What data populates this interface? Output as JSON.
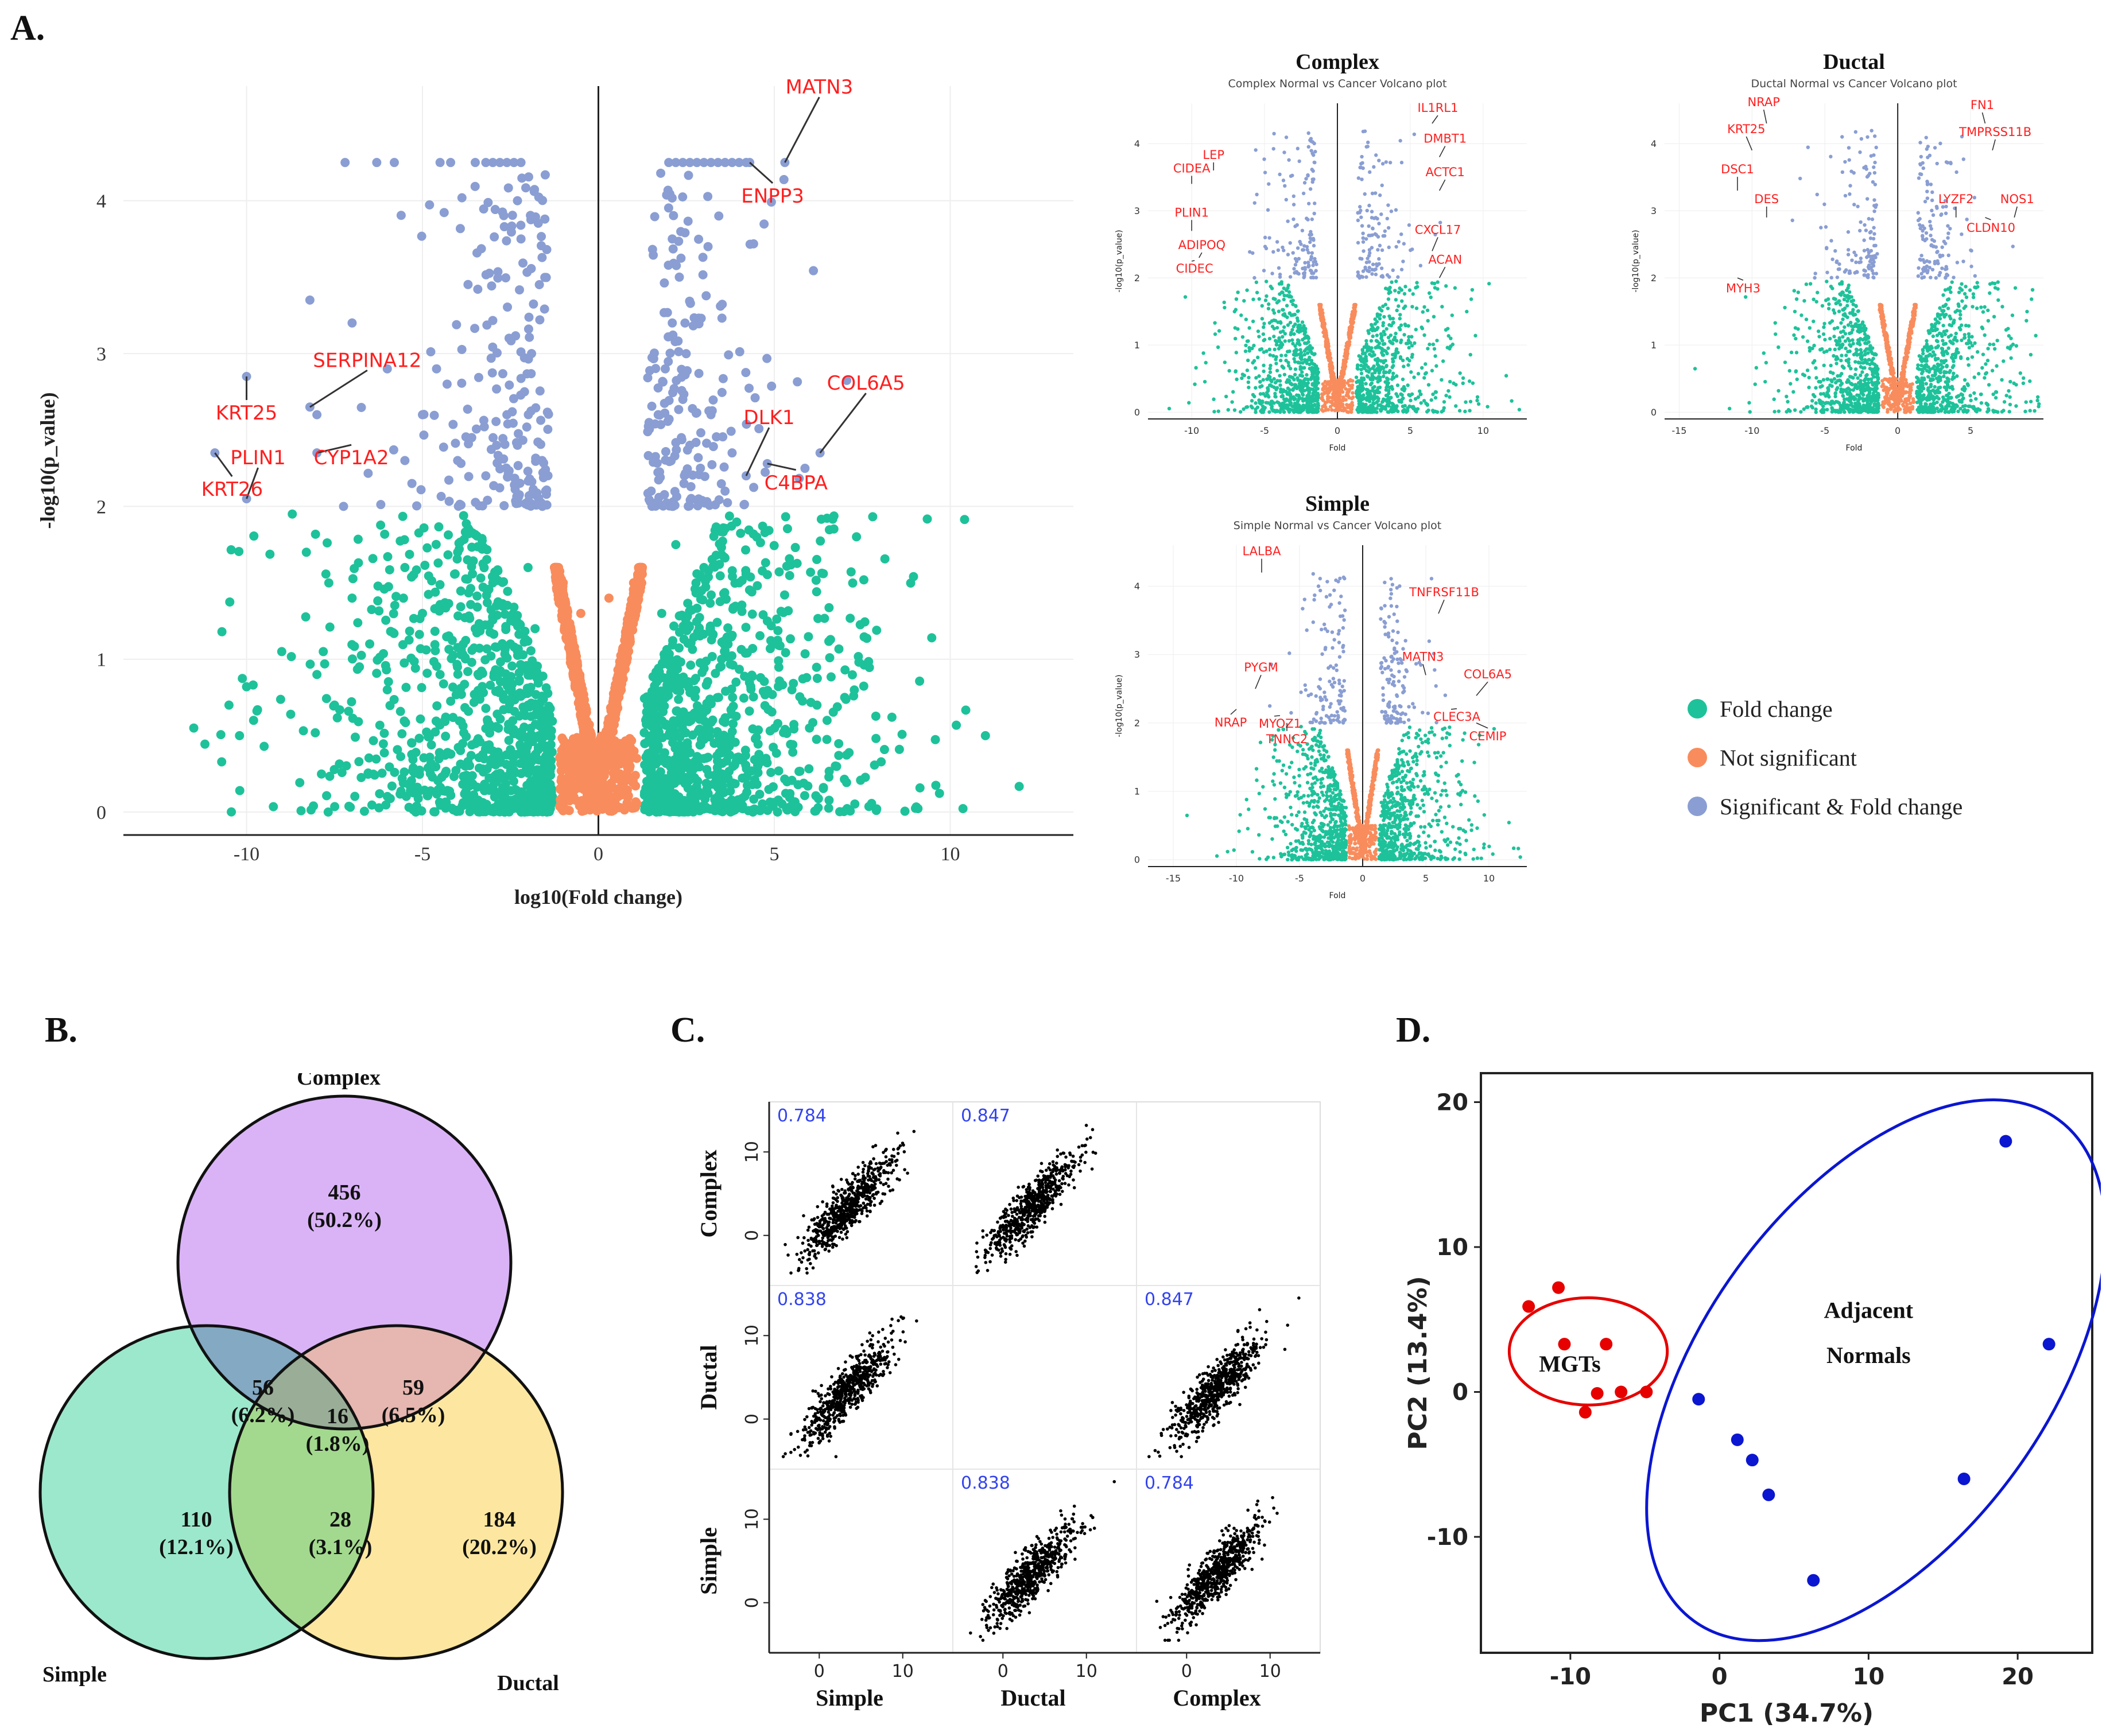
{
  "panels": {
    "a": "A.",
    "b": "B.",
    "c": "C.",
    "d": "D."
  },
  "colors": {
    "fold_change": "#1ec29a",
    "not_significant": "#f98c5c",
    "significant": "#8a9ed3",
    "label_red": "#ff1f1f",
    "venn_complex": "#dab3f7",
    "venn_simple": "#9ce8cc",
    "venn_ductal": "#fde7a0",
    "pca_mgt": "#e60000",
    "pca_normal": "#0b16d1"
  },
  "chart_data": [
    {
      "id": "volcano_main",
      "type": "scatter",
      "title": "",
      "xlabel": "log10(Fold change)",
      "ylabel": "-log10(p_value)",
      "xlim": [
        -13.5,
        13.5
      ],
      "ylim": [
        -0.15,
        4.75
      ],
      "xticks": [
        -10,
        -5,
        0,
        5,
        10
      ],
      "yticks": [
        0,
        1,
        2,
        3,
        4
      ],
      "sig_points": [
        [
          -7.2,
          4.25
        ],
        [
          -6.3,
          4.25
        ],
        [
          -5.8,
          4.25
        ],
        [
          -4.5,
          4.25
        ],
        [
          -4.2,
          4.25
        ],
        [
          -3.5,
          4.25
        ],
        [
          -3.2,
          4.25
        ],
        [
          -3.0,
          4.25
        ],
        [
          -2.8,
          4.25
        ],
        [
          -2.6,
          4.25
        ],
        [
          -2.4,
          4.25
        ],
        [
          -2.2,
          4.25
        ],
        [
          2.0,
          4.25
        ],
        [
          2.2,
          4.25
        ],
        [
          2.4,
          4.25
        ],
        [
          2.6,
          4.25
        ],
        [
          2.8,
          4.25
        ],
        [
          3.0,
          4.25
        ],
        [
          3.2,
          4.25
        ],
        [
          3.4,
          4.25
        ],
        [
          3.6,
          4.25
        ],
        [
          3.8,
          4.25
        ],
        [
          4.0,
          4.25
        ],
        [
          4.2,
          4.25
        ],
        [
          -2.3,
          4.0
        ],
        [
          -2.2,
          3.75
        ],
        [
          2.1,
          3.75
        ],
        [
          2.3,
          3.5
        ],
        [
          -8.2,
          3.35
        ],
        [
          -7.0,
          3.2
        ],
        [
          -6.0,
          2.9
        ],
        [
          -5.5,
          2.3
        ],
        [
          -5.0,
          2.6
        ],
        [
          -5.3,
          2.15
        ],
        [
          -4.6,
          2.9
        ],
        [
          -4.3,
          2.8
        ],
        [
          -4.0,
          2.3
        ],
        [
          -3.6,
          2.45
        ],
        [
          -3.2,
          2.2
        ],
        [
          -2.6,
          2.6
        ],
        [
          -2.3,
          2.4
        ],
        [
          -2.1,
          2.75
        ],
        [
          -1.9,
          3.0
        ],
        [
          -1.6,
          2.3
        ],
        [
          -1.5,
          2.1
        ],
        [
          1.5,
          2.1
        ],
        [
          1.6,
          2.3
        ],
        [
          1.7,
          2.6
        ],
        [
          1.9,
          2.9
        ],
        [
          2.1,
          3.2
        ],
        [
          2.4,
          2.7
        ],
        [
          2.6,
          2.4
        ],
        [
          2.9,
          2.25
        ],
        [
          3.2,
          2.6
        ],
        [
          3.6,
          2.1
        ],
        [
          3.8,
          2.35
        ],
        [
          -8.0,
          2.6
        ],
        [
          -10.0,
          2.85
        ],
        [
          -8.2,
          2.65
        ],
        [
          -8.0,
          2.35
        ],
        [
          -10.9,
          2.35
        ],
        [
          -10.0,
          2.05
        ],
        [
          4.2,
          2.2
        ],
        [
          4.8,
          2.28
        ],
        [
          6.3,
          2.35
        ],
        [
          5.3,
          4.25
        ],
        [
          4.3,
          4.25
        ]
      ],
      "fold_points": [
        [
          -11.5,
          0.55
        ],
        [
          -10.7,
          1.18
        ],
        [
          -10.5,
          0.7
        ],
        [
          -10.2,
          0.5
        ],
        [
          -10.0,
          0.82
        ],
        [
          -9.8,
          0.6
        ],
        [
          -9.5,
          0.43
        ],
        [
          -9.0,
          1.05
        ],
        [
          -8.7,
          1.95
        ],
        [
          -8.3,
          1.7
        ],
        [
          -8.0,
          0.9
        ],
        [
          -7.5,
          0.7
        ],
        [
          -7.0,
          1.4
        ],
        [
          -6.5,
          1.1
        ],
        [
          -6.0,
          0.8
        ],
        [
          -5.5,
          1.6
        ],
        [
          -5.0,
          1.3
        ],
        [
          -4.5,
          0.9
        ],
        [
          -4.0,
          1.7
        ],
        [
          -3.5,
          1.2
        ],
        [
          -3.0,
          1.5
        ],
        [
          -2.5,
          1.1
        ],
        [
          -2.0,
          0.7
        ],
        [
          -1.5,
          0.5
        ],
        [
          1.5,
          0.5
        ],
        [
          2.0,
          0.8
        ],
        [
          2.5,
          1.2
        ],
        [
          3.0,
          1.6
        ],
        [
          3.5,
          1.0
        ],
        [
          4.0,
          1.5
        ],
        [
          4.5,
          1.8
        ],
        [
          5.0,
          1.1
        ],
        [
          5.5,
          0.8
        ],
        [
          6.0,
          0.55
        ],
        [
          6.5,
          0.6
        ],
        [
          7.0,
          0.75
        ],
        [
          11.0,
          0.5
        ],
        [
          -2.0,
          1.6
        ],
        [
          -1.8,
          1.2
        ],
        [
          1.8,
          1.3
        ],
        [
          2.2,
          1.75
        ],
        [
          -3.0,
          0.4
        ],
        [
          3.0,
          0.35
        ]
      ],
      "ns_points": [
        [
          -1.0,
          1.5
        ],
        [
          -0.8,
          1.1
        ],
        [
          -0.6,
          0.8
        ],
        [
          -0.4,
          0.6
        ],
        [
          -0.2,
          0.4
        ],
        [
          0,
          0.3
        ],
        [
          0.2,
          0.4
        ],
        [
          0.4,
          0.6
        ],
        [
          0.6,
          0.9
        ],
        [
          0.8,
          1.2
        ],
        [
          1.0,
          1.5
        ],
        [
          -0.9,
          0.3
        ],
        [
          0.9,
          0.3
        ],
        [
          0.3,
          1.4
        ],
        [
          -0.5,
          1.3
        ]
      ],
      "annotations": [
        {
          "text": "MATN3",
          "x": 5.3,
          "y": 4.25
        },
        {
          "text": "ENPP3",
          "x": 4.3,
          "y": 4.25
        },
        {
          "text": "SERPINA12",
          "x": -8.2,
          "y": 2.65
        },
        {
          "text": "KRT25",
          "x": -10.0,
          "y": 2.85
        },
        {
          "text": "PLIN1",
          "x": -10.0,
          "y": 2.05
        },
        {
          "text": "CYP1A2",
          "x": -8.0,
          "y": 2.35
        },
        {
          "text": "KRT26",
          "x": -10.9,
          "y": 2.35
        },
        {
          "text": "DLK1",
          "x": 4.2,
          "y": 2.2
        },
        {
          "text": "COL6A5",
          "x": 6.3,
          "y": 2.35
        },
        {
          "text": "C4BPA",
          "x": 4.8,
          "y": 2.28
        }
      ]
    },
    {
      "id": "volcano_complex",
      "type": "scatter",
      "title": "Complex",
      "subtitle": "Complex Normal vs Cancer Volcano plot",
      "xlabel": "Fold",
      "ylabel": "-log10(p_value)",
      "xlim": [
        -13,
        13
      ],
      "ylim": [
        -0.1,
        4.6
      ],
      "xticks": [
        -10,
        -5,
        0,
        5,
        10
      ],
      "yticks": [
        0,
        1,
        2,
        3,
        4
      ],
      "annotations": [
        {
          "text": "IL1RL1",
          "x": 6.5,
          "y": 4.3
        },
        {
          "text": "DMBT1",
          "x": 7,
          "y": 3.8
        },
        {
          "text": "ACTC1",
          "x": 7,
          "y": 3.3
        },
        {
          "text": "CIDEA",
          "x": -10,
          "y": 3.4
        },
        {
          "text": "LEP",
          "x": -8.5,
          "y": 3.6
        },
        {
          "text": "CXCL17",
          "x": 6.5,
          "y": 2.4
        },
        {
          "text": "ACAN",
          "x": 7,
          "y": 2.0
        },
        {
          "text": "PLIN1",
          "x": -10,
          "y": 2.7
        },
        {
          "text": "ADIPOQ",
          "x": -9.5,
          "y": 2.3
        },
        {
          "text": "CIDEC",
          "x": -10,
          "y": 2.25
        }
      ]
    },
    {
      "id": "volcano_ductal",
      "type": "scatter",
      "title": "Ductal",
      "subtitle": "Ductal Normal vs Cancer Volcano plot",
      "xlabel": "Fold",
      "ylabel": "-log10(p_value)",
      "xlim": [
        -16,
        10
      ],
      "ylim": [
        -0.1,
        4.6
      ],
      "xticks": [
        -15,
        -10,
        -5,
        0,
        5
      ],
      "yticks": [
        0,
        1,
        2,
        3,
        4
      ],
      "annotations": [
        {
          "text": "NRAP",
          "x": -9,
          "y": 4.3
        },
        {
          "text": "FN1",
          "x": 6,
          "y": 4.3
        },
        {
          "text": "KRT25",
          "x": -10,
          "y": 3.9
        },
        {
          "text": "TMPRSS11B",
          "x": 6.5,
          "y": 3.9
        },
        {
          "text": "DSC1",
          "x": -11,
          "y": 3.3
        },
        {
          "text": "DES",
          "x": -9,
          "y": 2.9
        },
        {
          "text": "LYZF2",
          "x": 4,
          "y": 2.9
        },
        {
          "text": "NOS1",
          "x": 8,
          "y": 2.9
        },
        {
          "text": "CLDN10",
          "x": 6,
          "y": 2.9
        },
        {
          "text": "MYH3",
          "x": -11,
          "y": 2.0
        }
      ]
    },
    {
      "id": "volcano_simple",
      "type": "scatter",
      "title": "Simple",
      "subtitle": "Simple Normal vs Cancer Volcano plot",
      "xlabel": "Fold",
      "ylabel": "-log10(p_value)",
      "xlim": [
        -17,
        13
      ],
      "ylim": [
        -0.1,
        4.6
      ],
      "xticks": [
        -15,
        -10,
        -5,
        0,
        5,
        10
      ],
      "yticks": [
        0,
        1,
        2,
        3,
        4
      ],
      "annotations": [
        {
          "text": "LALBA",
          "x": -8,
          "y": 4.2
        },
        {
          "text": "TNFRSF11B",
          "x": 6,
          "y": 3.6
        },
        {
          "text": "PYGM",
          "x": -8.5,
          "y": 2.5
        },
        {
          "text": "MATN3",
          "x": 5,
          "y": 2.7
        },
        {
          "text": "COL6A5",
          "x": 9,
          "y": 2.4
        },
        {
          "text": "NRAP",
          "x": -10,
          "y": 2.2
        },
        {
          "text": "CLEC3A",
          "x": 7,
          "y": 2.2
        },
        {
          "text": "MYOZ1",
          "x": -7,
          "y": 2.1
        },
        {
          "text": "TNNC2",
          "x": -6,
          "y": 2.0
        },
        {
          "text": "CEMIP",
          "x": 9,
          "y": 2.0
        }
      ]
    },
    {
      "id": "venn",
      "type": "venn",
      "sets": [
        "Complex",
        "Simple",
        "Ductal"
      ],
      "regions": [
        {
          "sets": [
            "Complex"
          ],
          "count": "456",
          "pct": "(50.2%)"
        },
        {
          "sets": [
            "Simple"
          ],
          "count": "110",
          "pct": "(12.1%)"
        },
        {
          "sets": [
            "Ductal"
          ],
          "count": "184",
          "pct": "(20.2%)"
        },
        {
          "sets": [
            "Complex",
            "Simple"
          ],
          "count": "56",
          "pct": "(6.2%)"
        },
        {
          "sets": [
            "Complex",
            "Ductal"
          ],
          "count": "59",
          "pct": "(6.5%)"
        },
        {
          "sets": [
            "Simple",
            "Ductal"
          ],
          "count": "28",
          "pct": "(3.1%)"
        },
        {
          "sets": [
            "Complex",
            "Simple",
            "Ductal"
          ],
          "count": "16",
          "pct": "(1.8%)"
        }
      ]
    },
    {
      "id": "pairs",
      "type": "scatter",
      "variables": [
        "Complex",
        "Ductal",
        "Simple"
      ],
      "x_variables": [
        "Simple",
        "Ductal",
        "Complex"
      ],
      "xticks": [
        0,
        10
      ],
      "yticks": [
        0,
        10
      ],
      "correlations": [
        {
          "row": 0,
          "col": 0,
          "value": "0.784"
        },
        {
          "row": 0,
          "col": 1,
          "value": "0.847"
        },
        {
          "row": 1,
          "col": 0,
          "value": "0.838"
        },
        {
          "row": 1,
          "col": 2,
          "value": "0.847"
        },
        {
          "row": 2,
          "col": 1,
          "value": "0.838"
        },
        {
          "row": 2,
          "col": 2,
          "value": "0.784"
        }
      ],
      "empty_cells": [
        [
          0,
          2
        ],
        [
          1,
          1
        ],
        [
          2,
          0
        ]
      ]
    },
    {
      "id": "pca",
      "type": "scatter",
      "xlabel": "PC1 (34.7%)",
      "ylabel": "PC2 (13.4%)",
      "xlim": [
        -16,
        25
      ],
      "ylim": [
        -18,
        22
      ],
      "xticks": [
        -10,
        0,
        10,
        20
      ],
      "yticks": [
        -10,
        0,
        10,
        20
      ],
      "series": [
        {
          "name": "MGTs",
          "label": "MGTs",
          "color": "#e60000",
          "x": [
            -12.8,
            -10.8,
            -10.4,
            -7.6,
            -9.0,
            -8.2,
            -6.6,
            -4.9
          ],
          "y": [
            5.9,
            7.2,
            3.3,
            3.3,
            -1.4,
            -0.1,
            0.0,
            0.0
          ]
        },
        {
          "name": "Adjacent Normals",
          "label": "Adjacent Normals",
          "color": "#0b16d1",
          "x": [
            19.2,
            22.1,
            -1.4,
            1.2,
            2.2,
            3.3,
            16.4,
            6.3
          ],
          "y": [
            17.3,
            3.3,
            -0.5,
            -3.3,
            -4.7,
            -7.1,
            -6.0,
            -13.0
          ]
        }
      ],
      "labels": {
        "mgt": "MGTs",
        "adj1": "Adjacent",
        "adj2": "Normals"
      }
    }
  ],
  "legend": {
    "items": [
      {
        "label": "Fold change",
        "color": "#1ec29a"
      },
      {
        "label": "Not significant",
        "color": "#f98c5c"
      },
      {
        "label": "Significant & Fold change",
        "color": "#8a9ed3"
      }
    ]
  }
}
